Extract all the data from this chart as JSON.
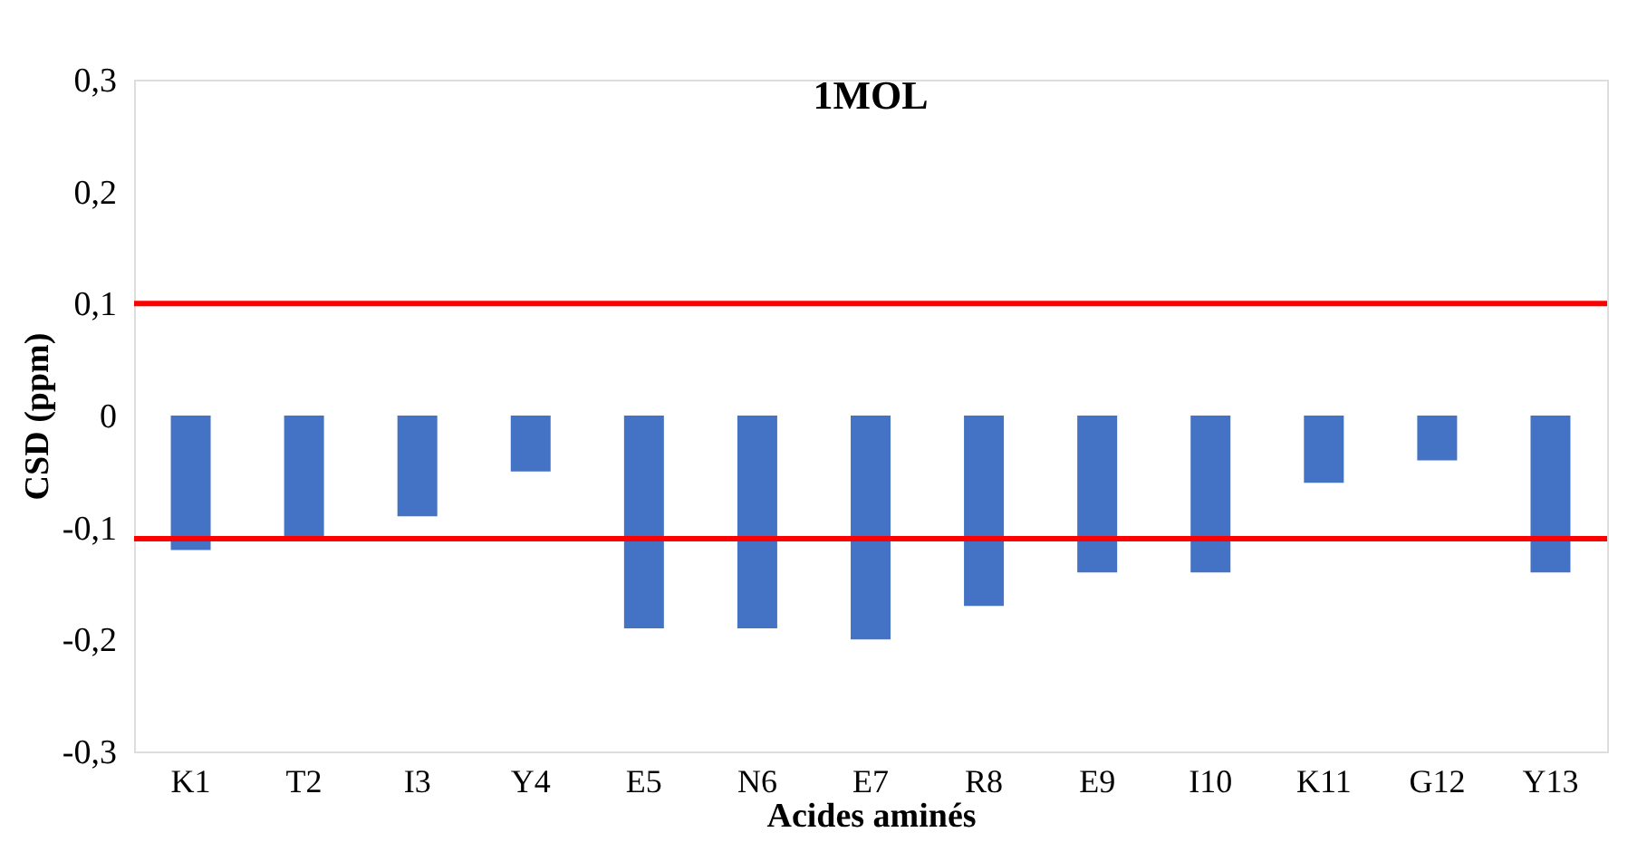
{
  "chart_data": {
    "type": "bar",
    "title": "1MOL",
    "xlabel": "Acides aminés",
    "ylabel": "CSD (ppm)",
    "categories": [
      "K1",
      "T2",
      "I3",
      "Y4",
      "E5",
      "N6",
      "E7",
      "R8",
      "E9",
      "I10",
      "K11",
      "G12",
      "Y13"
    ],
    "values": [
      -0.12,
      -0.11,
      -0.09,
      -0.05,
      -0.19,
      -0.19,
      -0.2,
      -0.17,
      -0.14,
      -0.14,
      -0.06,
      -0.04,
      -0.14
    ],
    "color": "#4472c4",
    "ylim": [
      -0.3,
      0.3
    ],
    "yticks": [
      {
        "value": -0.3,
        "label": "-0,3"
      },
      {
        "value": -0.2,
        "label": "-0,2"
      },
      {
        "value": -0.1,
        "label": "-0,1"
      },
      0,
      {
        "value": 0.1,
        "label": "0,1"
      },
      {
        "value": 0.2,
        "label": "0,2"
      },
      {
        "value": 0.3,
        "label": "0,3"
      }
    ],
    "ref_lines": [
      {
        "axis": "y",
        "value": 0.1,
        "color": "#ff0000"
      },
      {
        "axis": "y",
        "value": -0.11,
        "color": "#ff0000"
      }
    ],
    "grid": false
  }
}
